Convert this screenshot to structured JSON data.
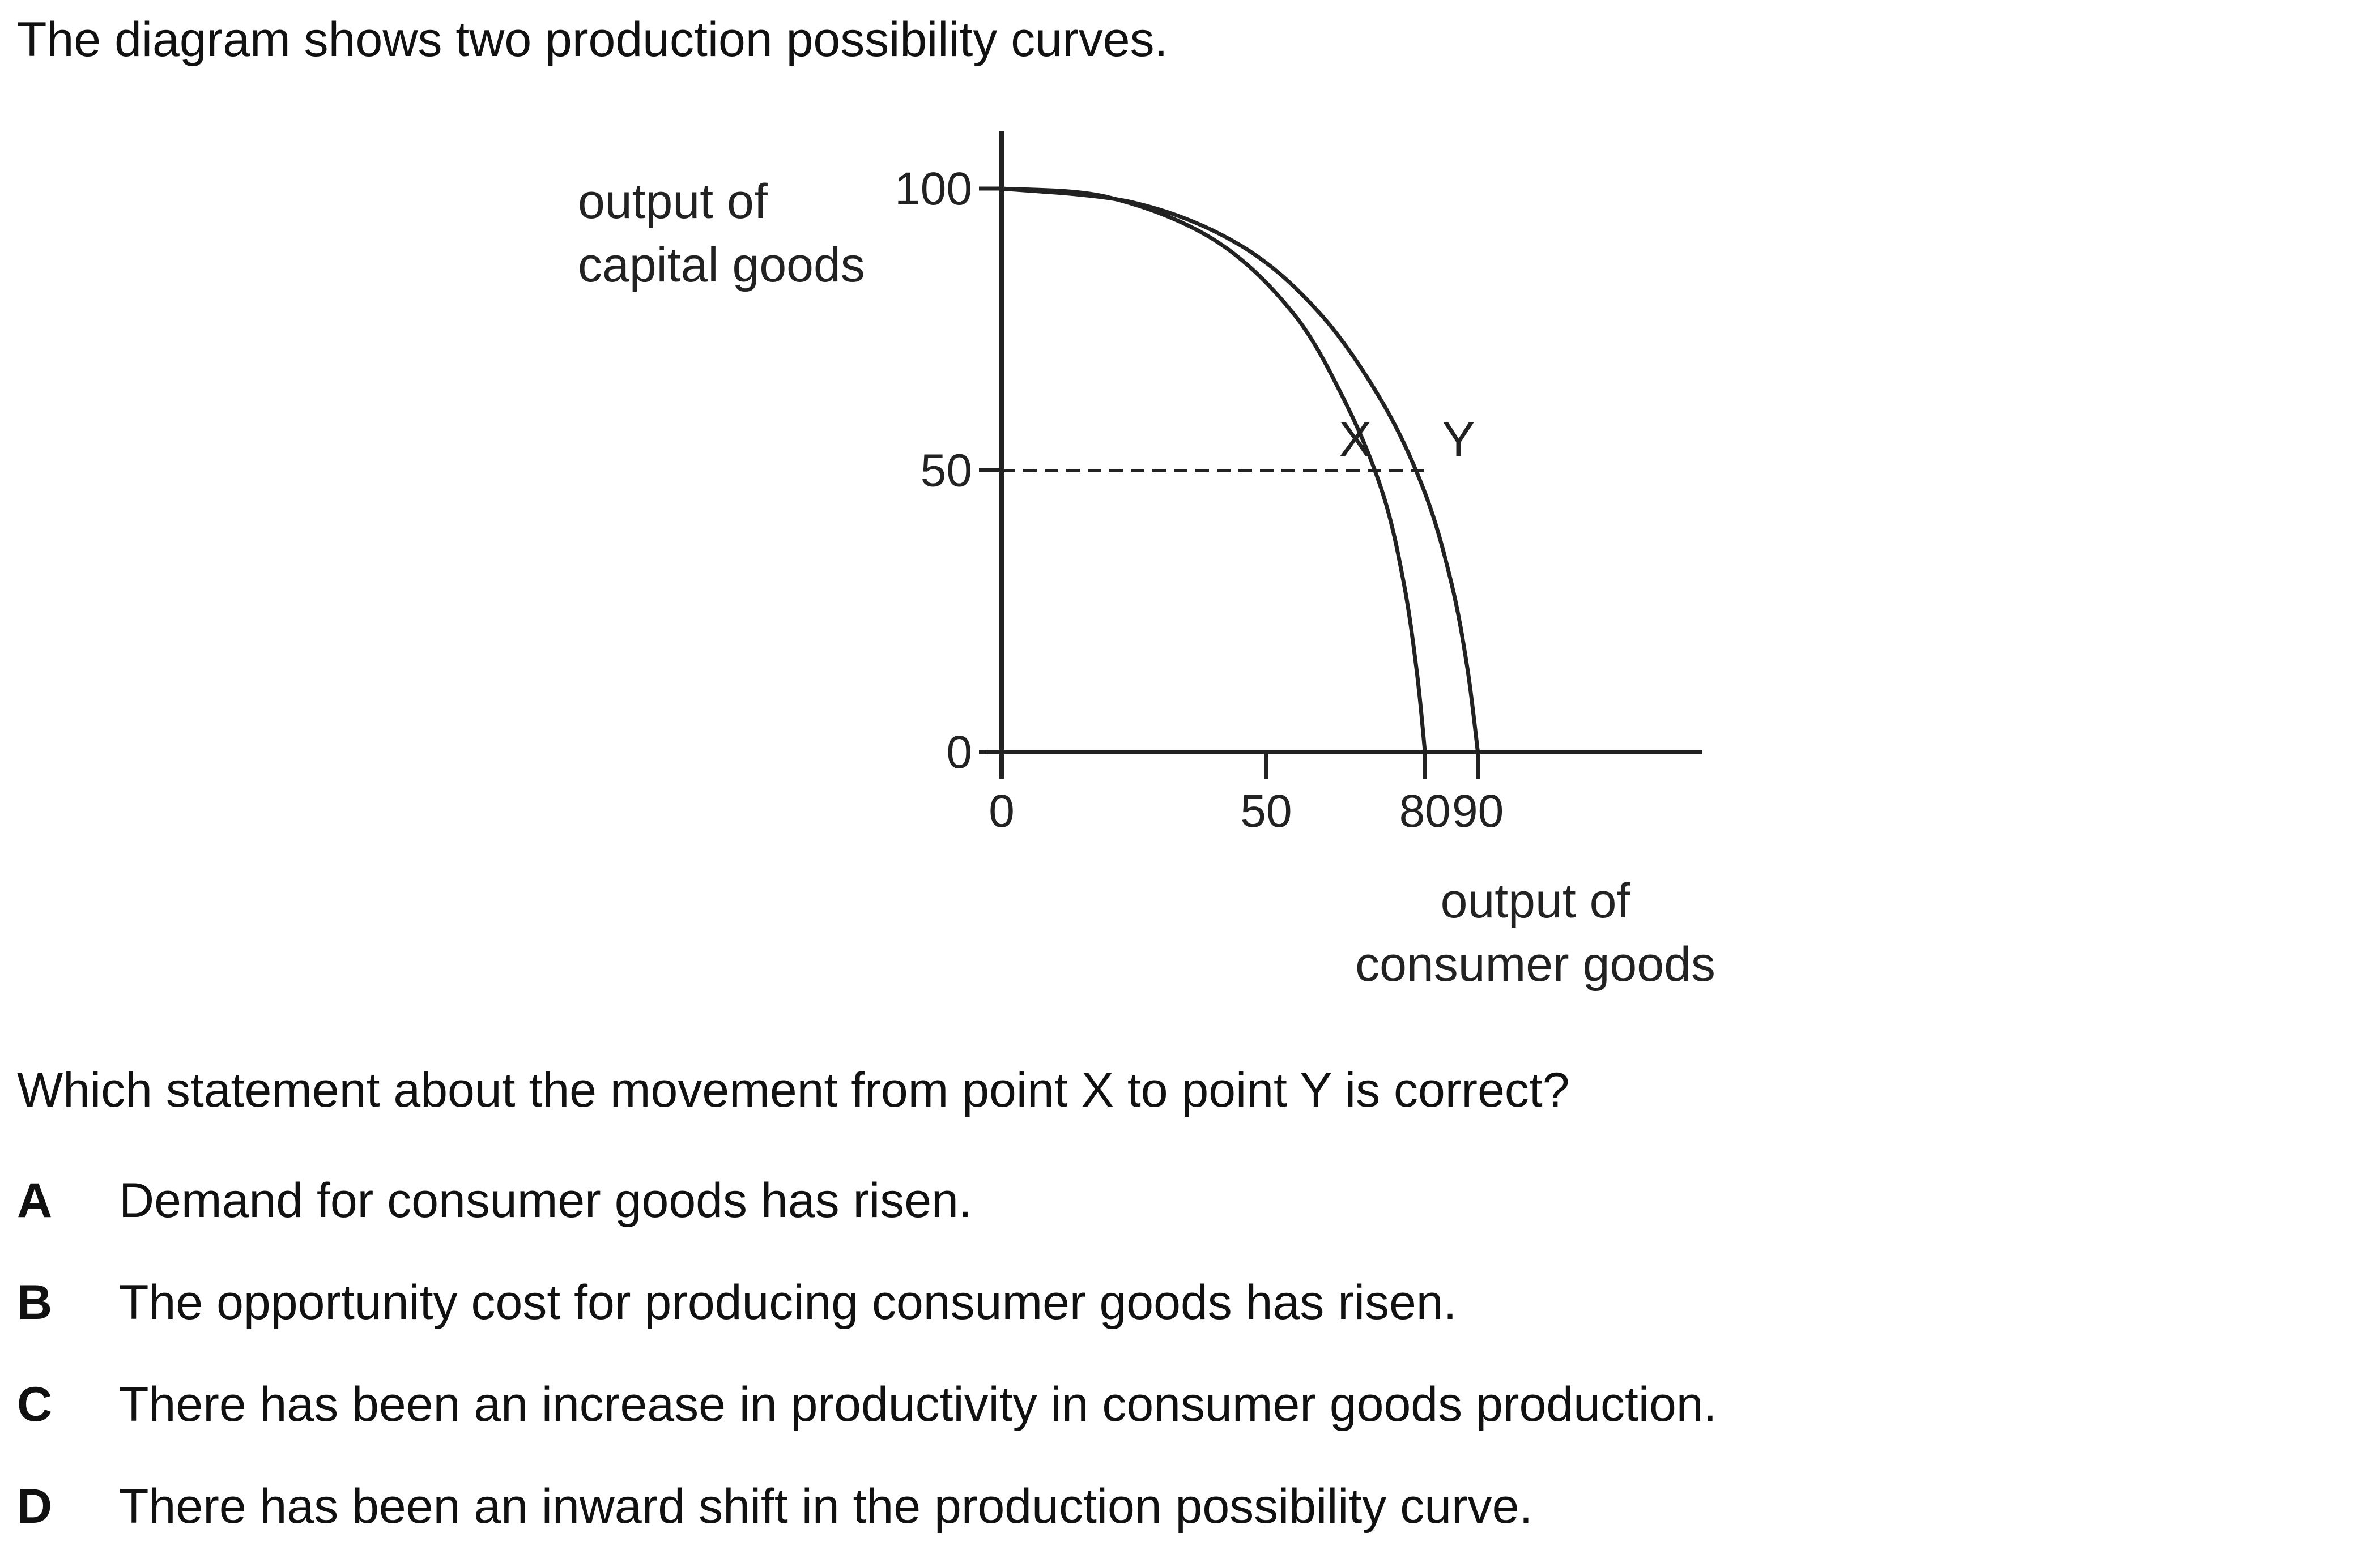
{
  "intro": "The diagram shows two production possibility curves.",
  "question": "Which statement about the movement from point X to point Y is correct?",
  "options": [
    {
      "letter": "A",
      "text": "Demand for consumer goods has risen."
    },
    {
      "letter": "B",
      "text": "The opportunity cost for producing consumer goods has risen."
    },
    {
      "letter": "C",
      "text": "There has been an increase in productivity in consumer goods production."
    },
    {
      "letter": "D",
      "text": "There has been an inward shift in the production possibility curve."
    }
  ],
  "chart_data": {
    "type": "line",
    "title": "",
    "ylabel_lines": [
      "output of",
      "capital goods"
    ],
    "xlabel_lines": [
      "output of",
      "consumer goods"
    ],
    "xlim": [
      0,
      90
    ],
    "ylim": [
      0,
      100
    ],
    "x_ticks": [
      "0",
      "50",
      "80",
      "90"
    ],
    "x_tick_values": [
      0,
      50,
      80,
      90
    ],
    "y_ticks": [
      "0",
      "50",
      "100"
    ],
    "y_tick_values": [
      0,
      50,
      100
    ],
    "grid": false,
    "series": [
      {
        "name": "X",
        "x": [
          0,
          20,
          40,
          55,
          65,
          72,
          76,
          78.5,
          80
        ],
        "y": [
          100,
          98.5,
          91,
          78,
          62,
          46,
          30,
          14,
          0
        ]
      },
      {
        "name": "Y",
        "x": [
          0,
          25,
          45,
          60,
          72,
          80,
          85,
          88,
          90
        ],
        "y": [
          100,
          97.5,
          90,
          78,
          62,
          46,
          30,
          15,
          0
        ]
      }
    ],
    "points": [
      {
        "label": "X",
        "x": 69.5,
        "y": 50
      },
      {
        "label": "Y",
        "x": 81,
        "y": 50
      }
    ],
    "reference_line": {
      "y": 50,
      "x_from": 0,
      "x_to": 81,
      "style": "dashed"
    }
  }
}
